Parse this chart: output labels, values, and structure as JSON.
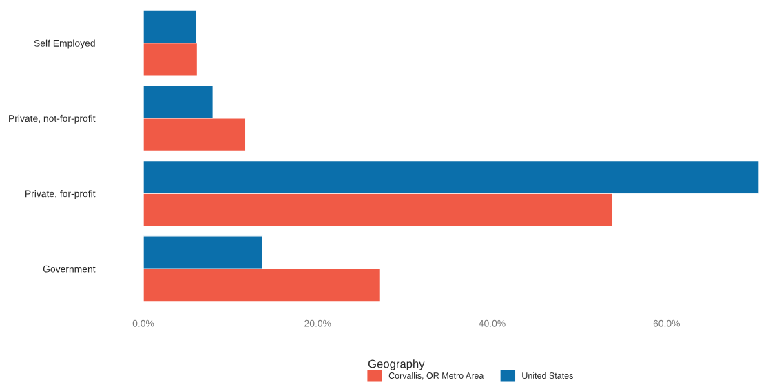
{
  "chart_data": {
    "type": "bar",
    "orientation": "horizontal",
    "categories": [
      "Self Employed",
      "Private, not-for-profit",
      "Private, for-profit",
      "Government"
    ],
    "series": [
      {
        "name": "United States",
        "color": "#0b6fab",
        "values": [
          6.1,
          8.0,
          70.6,
          13.7
        ]
      },
      {
        "name": "Corvallis, OR Metro Area",
        "color": "#f05a46",
        "values": [
          6.2,
          11.7,
          53.8,
          27.2
        ]
      }
    ],
    "xlim": [
      0,
      70.6
    ],
    "xticks": [
      {
        "value": 0,
        "label": "0.0%"
      },
      {
        "value": 20,
        "label": "20.0%"
      },
      {
        "value": 40,
        "label": "40.0%"
      },
      {
        "value": 60,
        "label": "60.0%"
      }
    ],
    "legend_title": "Geography",
    "legend": "bottom",
    "grid": false
  }
}
